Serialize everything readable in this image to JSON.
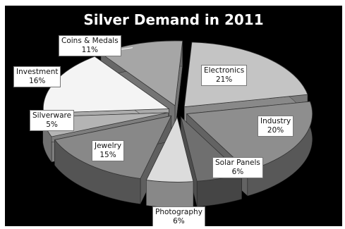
{
  "chart_data": {
    "type": "pie",
    "title": "Silver Demand in 2011",
    "slices": [
      {
        "label": "Electronics",
        "value": 21,
        "display": "21%",
        "color": "#c4c4c4"
      },
      {
        "label": "Industry",
        "value": 20,
        "display": "20%",
        "color": "#8e8e8e"
      },
      {
        "label": "Solar Panels",
        "value": 6,
        "display": "6%",
        "color": "#6f6f6f"
      },
      {
        "label": "Photography",
        "value": 6,
        "display": "6%",
        "color": "#dcdcdc"
      },
      {
        "label": "Jewelry",
        "value": 15,
        "display": "15%",
        "color": "#888888"
      },
      {
        "label": "Silverware",
        "value": 5,
        "display": "5%",
        "color": "#b4b4b4"
      },
      {
        "label": "Investment",
        "value": 16,
        "display": "16%",
        "color": "#f4f4f4"
      },
      {
        "label": "Coins & Medals",
        "value": 11,
        "display": "11%",
        "color": "#a6a6a6"
      }
    ],
    "style": "3d-exploded"
  }
}
